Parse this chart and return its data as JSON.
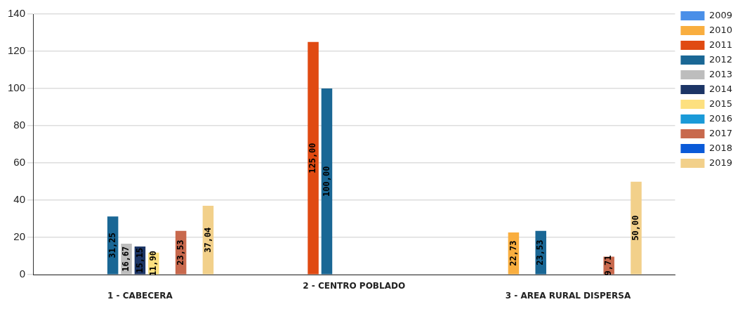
{
  "chart_data": {
    "type": "bar",
    "categories": [
      "1 - CABECERA",
      "2 - CENTRO POBLADO",
      "3 - AREA RURAL DISPERSA"
    ],
    "series": [
      {
        "name": "2009",
        "color": "#4a8fe8",
        "values": [
          null,
          null,
          null
        ]
      },
      {
        "name": "2010",
        "color": "#f9ae3f",
        "values": [
          null,
          null,
          22.73
        ],
        "value_labels": [
          null,
          null,
          "22,73"
        ]
      },
      {
        "name": "2011",
        "color": "#e04a12",
        "values": [
          null,
          125,
          null
        ],
        "value_labels": [
          null,
          "125,00",
          null
        ]
      },
      {
        "name": "2012",
        "color": "#1a6795",
        "values": [
          31.25,
          100,
          23.53
        ],
        "value_labels": [
          "31,25",
          "100,00",
          "23,53"
        ]
      },
      {
        "name": "2013",
        "color": "#bdbdbd",
        "values": [
          16.67,
          null,
          null
        ],
        "value_labels": [
          "16,67",
          null,
          null
        ]
      },
      {
        "name": "2014",
        "color": "#1c3566",
        "values": [
          15.15,
          null,
          null
        ],
        "value_labels": [
          "15,15",
          null,
          null
        ]
      },
      {
        "name": "2015",
        "color": "#fde07f",
        "values": [
          11.9,
          null,
          null
        ],
        "value_labels": [
          "11,90",
          null,
          null
        ]
      },
      {
        "name": "2016",
        "color": "#1a9ad8",
        "values": [
          null,
          null,
          null
        ]
      },
      {
        "name": "2017",
        "color": "#c8694d",
        "values": [
          23.53,
          null,
          9.71
        ],
        "value_labels": [
          "23,53",
          null,
          "9,71"
        ]
      },
      {
        "name": "2018",
        "color": "#0a5ad8",
        "values": [
          null,
          null,
          null
        ]
      },
      {
        "name": "2019",
        "color": "#f2d08a",
        "values": [
          37.04,
          null,
          50
        ],
        "value_labels": [
          "37,04",
          null,
          "50,00"
        ]
      }
    ],
    "ylim": [
      0,
      140
    ],
    "yticks": [
      0,
      20,
      40,
      60,
      80,
      100,
      120,
      140
    ],
    "grid": "y",
    "legend": "top right"
  }
}
